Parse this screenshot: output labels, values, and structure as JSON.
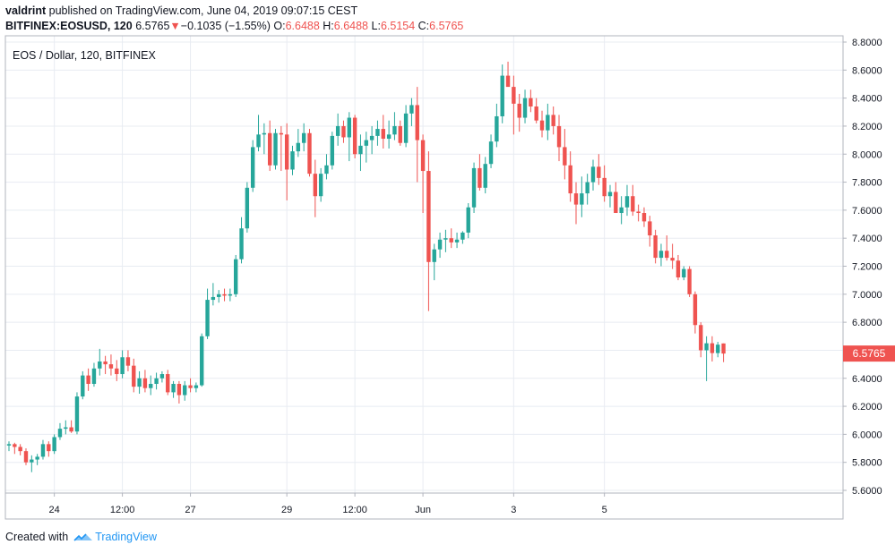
{
  "header": {
    "author": "valdrint",
    "published_text": "published on TradingView.com, June 04, 2019 09:07:15 CEST",
    "symbol": "BITFINEX:EOSUSD, 120",
    "last": "6.5765",
    "change": "−0.1035 (−1.55%)",
    "o_label": "O:",
    "o_value": "6.6488",
    "h_label": "H:",
    "h_value": "6.6488",
    "l_label": "L:",
    "l_value": "6.5154",
    "c_label": "C:",
    "c_value": "6.5765"
  },
  "footer": {
    "created_with": "Created with",
    "brand": "TradingView"
  },
  "colors": {
    "up": "#26a69a",
    "down": "#ef5350",
    "grid": "#e8ecf2",
    "axis": "#9598a1",
    "text": "#131722",
    "price_tag": "#ef5350"
  },
  "chart_data": {
    "type": "candlestick",
    "title": "EOS / Dollar, 120, BITFINEX",
    "price_tag": "6.5765",
    "y_ticks": [
      "5.6000",
      "5.8000",
      "6.0000",
      "6.2000",
      "6.4000",
      "6.6000",
      "6.8000",
      "7.0000",
      "7.2000",
      "7.4000",
      "7.6000",
      "7.8000",
      "8.0000",
      "8.2000",
      "8.4000",
      "8.6000",
      "8.8000"
    ],
    "ylim": [
      5.6,
      8.8
    ],
    "x_ticks": [
      {
        "label": "24",
        "index": 8
      },
      {
        "label": "12:00",
        "index": 20
      },
      {
        "label": "27",
        "index": 32
      },
      {
        "label": "29",
        "index": 49
      },
      {
        "label": "12:00",
        "index": 61
      },
      {
        "label": "Jun",
        "index": 73
      },
      {
        "label": "3",
        "index": 89
      },
      {
        "label": "5",
        "index": 105
      }
    ],
    "grid": true,
    "ohlc": [
      [
        5.92,
        5.95,
        5.88,
        5.93
      ],
      [
        5.93,
        5.94,
        5.86,
        5.91
      ],
      [
        5.91,
        5.93,
        5.85,
        5.88
      ],
      [
        5.88,
        5.9,
        5.78,
        5.8
      ],
      [
        5.8,
        5.85,
        5.73,
        5.82
      ],
      [
        5.82,
        5.86,
        5.78,
        5.84
      ],
      [
        5.84,
        5.96,
        5.82,
        5.93
      ],
      [
        5.93,
        5.95,
        5.84,
        5.88
      ],
      [
        5.88,
        6.0,
        5.86,
        5.98
      ],
      [
        5.98,
        6.08,
        5.96,
        6.04
      ],
      [
        6.04,
        6.1,
        6.0,
        6.05
      ],
      [
        6.05,
        6.1,
        6.01,
        6.02
      ],
      [
        6.02,
        6.3,
        6.0,
        6.27
      ],
      [
        6.27,
        6.45,
        6.25,
        6.42
      ],
      [
        6.42,
        6.47,
        6.31,
        6.36
      ],
      [
        6.36,
        6.51,
        6.34,
        6.47
      ],
      [
        6.47,
        6.61,
        6.42,
        6.52
      ],
      [
        6.52,
        6.56,
        6.43,
        6.5
      ],
      [
        6.5,
        6.57,
        6.42,
        6.47
      ],
      [
        6.47,
        6.53,
        6.38,
        6.43
      ],
      [
        6.43,
        6.6,
        6.4,
        6.55
      ],
      [
        6.55,
        6.6,
        6.45,
        6.49
      ],
      [
        6.49,
        6.54,
        6.3,
        6.34
      ],
      [
        6.34,
        6.45,
        6.29,
        6.4
      ],
      [
        6.4,
        6.46,
        6.3,
        6.33
      ],
      [
        6.33,
        6.42,
        6.28,
        6.36
      ],
      [
        6.36,
        6.44,
        6.32,
        6.4
      ],
      [
        6.4,
        6.45,
        6.37,
        6.43
      ],
      [
        6.43,
        6.46,
        6.28,
        6.3
      ],
      [
        6.3,
        6.38,
        6.26,
        6.36
      ],
      [
        6.36,
        6.38,
        6.22,
        6.28
      ],
      [
        6.28,
        6.38,
        6.24,
        6.35
      ],
      [
        6.35,
        6.4,
        6.3,
        6.33
      ],
      [
        6.33,
        6.37,
        6.3,
        6.35
      ],
      [
        6.35,
        6.72,
        6.34,
        6.7
      ],
      [
        6.7,
        7.04,
        6.68,
        6.96
      ],
      [
        6.96,
        7.08,
        6.92,
        6.98
      ],
      [
        6.98,
        7.03,
        6.94,
        7.0
      ],
      [
        7.0,
        7.04,
        6.95,
        6.99
      ],
      [
        6.99,
        7.04,
        6.95,
        7.0
      ],
      [
        7.0,
        7.28,
        6.98,
        7.25
      ],
      [
        7.25,
        7.55,
        7.22,
        7.47
      ],
      [
        7.47,
        7.8,
        7.44,
        7.76
      ],
      [
        7.76,
        8.1,
        7.73,
        8.05
      ],
      [
        8.05,
        8.28,
        8.02,
        8.14
      ],
      [
        8.14,
        8.22,
        8.0,
        8.15
      ],
      [
        8.15,
        8.24,
        7.88,
        7.92
      ],
      [
        7.92,
        8.18,
        7.89,
        8.15
      ],
      [
        8.15,
        8.2,
        7.88,
        8.14
      ],
      [
        8.14,
        8.22,
        7.67,
        7.89
      ],
      [
        7.89,
        8.06,
        7.85,
        8.02
      ],
      [
        8.02,
        8.18,
        7.98,
        8.08
      ],
      [
        8.08,
        8.22,
        8.02,
        8.15
      ],
      [
        8.15,
        8.18,
        7.84,
        7.86
      ],
      [
        7.86,
        7.96,
        7.55,
        7.7
      ],
      [
        7.7,
        7.9,
        7.66,
        7.86
      ],
      [
        7.86,
        8.0,
        7.82,
        7.92
      ],
      [
        7.92,
        8.16,
        7.89,
        8.13
      ],
      [
        8.13,
        8.29,
        8.06,
        8.2
      ],
      [
        8.2,
        8.24,
        8.08,
        8.12
      ],
      [
        8.12,
        8.3,
        7.95,
        8.26
      ],
      [
        8.26,
        8.28,
        7.97,
        8.0
      ],
      [
        8.0,
        8.14,
        7.88,
        8.06
      ],
      [
        8.06,
        8.16,
        7.94,
        8.1
      ]
    ],
    "ohlc_part2": [
      [
        8.1,
        8.2,
        8.0,
        8.13
      ],
      [
        8.13,
        8.24,
        8.06,
        8.18
      ],
      [
        8.18,
        8.28,
        8.04,
        8.11
      ],
      [
        8.11,
        8.24,
        8.04,
        8.14
      ],
      [
        8.14,
        8.3,
        8.1,
        8.2
      ],
      [
        8.2,
        8.24,
        8.06,
        8.08
      ],
      [
        8.08,
        8.35,
        8.05,
        8.29
      ],
      [
        8.29,
        8.4,
        8.2,
        8.35
      ],
      [
        8.35,
        8.48,
        7.8,
        8.1
      ],
      [
        8.1,
        8.14,
        7.58,
        7.88
      ],
      [
        7.88,
        8.02,
        6.88,
        7.23
      ],
      [
        7.23,
        7.36,
        7.1,
        7.32
      ],
      [
        7.32,
        7.44,
        7.26,
        7.39
      ],
      [
        7.39,
        7.46,
        7.3,
        7.4
      ],
      [
        7.4,
        7.47,
        7.33,
        7.37
      ],
      [
        7.37,
        7.44,
        7.33,
        7.39
      ],
      [
        7.39,
        7.45,
        7.36,
        7.44
      ],
      [
        7.44,
        7.65,
        7.4,
        7.62
      ],
      [
        7.62,
        7.94,
        7.58,
        7.9
      ],
      [
        7.9,
        8.0,
        7.74,
        7.76
      ],
      [
        7.76,
        7.98,
        7.72,
        7.93
      ],
      [
        7.93,
        8.14,
        7.9,
        8.09
      ],
      [
        8.09,
        8.36,
        8.05,
        8.27
      ],
      [
        8.27,
        8.64,
        8.22,
        8.56
      ],
      [
        8.56,
        8.66,
        8.5,
        8.48
      ],
      [
        8.48,
        8.56,
        8.14,
        8.36
      ],
      [
        8.36,
        8.43,
        8.16,
        8.26
      ],
      [
        8.26,
        8.46,
        8.22,
        8.4
      ],
      [
        8.4,
        8.46,
        8.3,
        8.34
      ],
      [
        8.34,
        8.4,
        8.22,
        8.24
      ],
      [
        8.24,
        8.31,
        8.12,
        8.17
      ],
      [
        8.17,
        8.36,
        8.1,
        8.28
      ],
      [
        8.28,
        8.34,
        8.14,
        8.2
      ],
      [
        8.2,
        8.28,
        7.95,
        8.05
      ],
      [
        8.05,
        8.18,
        7.82,
        7.92
      ],
      [
        7.92,
        8.02,
        7.66,
        7.72
      ],
      [
        7.72,
        7.8,
        7.5,
        7.64
      ],
      [
        7.64,
        7.84,
        7.55,
        7.72
      ],
      [
        7.72,
        7.86,
        7.64,
        7.8
      ],
      [
        7.8,
        7.96,
        7.74,
        7.91
      ],
      [
        7.91,
        8.0,
        7.78,
        7.83
      ],
      [
        7.83,
        7.92,
        7.66,
        7.7
      ],
      [
        7.7,
        7.78,
        7.62,
        7.73
      ],
      [
        7.73,
        7.8,
        7.58,
        7.58
      ],
      [
        7.58,
        7.7,
        7.5,
        7.62
      ],
      [
        7.62,
        7.78,
        7.56,
        7.7
      ],
      [
        7.7,
        7.78,
        7.56,
        7.59
      ],
      [
        7.59,
        7.64,
        7.52,
        7.58
      ],
      [
        7.58,
        7.62,
        7.48,
        7.52
      ],
      [
        7.52,
        7.56,
        7.34,
        7.42
      ],
      [
        7.42,
        7.46,
        7.22,
        7.26
      ],
      [
        7.26,
        7.36,
        7.2,
        7.31
      ],
      [
        7.31,
        7.42,
        7.24,
        7.26
      ],
      [
        7.26,
        7.36,
        7.18,
        7.24
      ],
      [
        7.24,
        7.28,
        7.1,
        7.12
      ],
      [
        7.12,
        7.2,
        7.1,
        7.18
      ],
      [
        7.18,
        7.2,
        6.98,
        7.0
      ],
      [
        7.0,
        7.02,
        6.72,
        6.78
      ],
      [
        6.78,
        6.8,
        6.55,
        6.6
      ],
      [
        6.6,
        6.7,
        6.38,
        6.65
      ],
      [
        6.65,
        6.7,
        6.52,
        6.58
      ],
      [
        6.58,
        6.66,
        6.55,
        6.64
      ],
      [
        6.6488,
        6.6488,
        6.5154,
        6.5765
      ]
    ]
  }
}
